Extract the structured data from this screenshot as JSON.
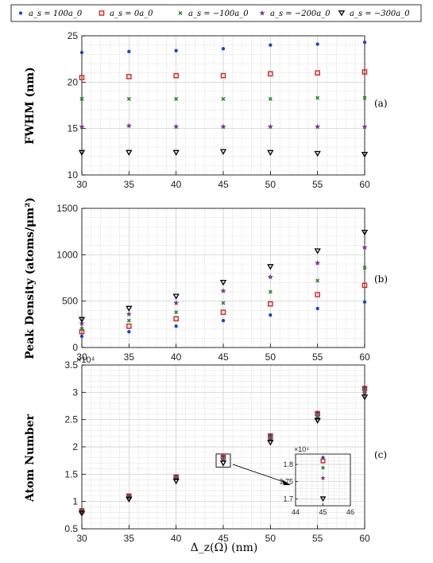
{
  "legend": {
    "entries": [
      {
        "label": "a_s = 100a_0",
        "marker": "dot",
        "color": "#1f3fd6"
      },
      {
        "label": "a_s = 0a_0",
        "marker": "square",
        "color": "#e0201b"
      },
      {
        "label": "a_s = −100a_0",
        "marker": "x",
        "color": "#1f8a2a"
      },
      {
        "label": "a_s = −200a_0",
        "marker": "star",
        "color": "#7a3a8e"
      },
      {
        "label": "a_s = −300a_0",
        "marker": "triangle",
        "color": "#000000"
      }
    ]
  },
  "panels_text": {
    "a": {
      "ylabel": "FWHM  (nm)",
      "tag": "(a)"
    },
    "b": {
      "ylabel": "Peak Density (atoms/μm²)",
      "tag": "(b)"
    },
    "c": {
      "ylabel": "Atom Number",
      "tag": "(c)",
      "exponent": "×10⁴",
      "inset_exponent": "×10⁴"
    }
  },
  "xlabel": "Δ_z(Ω)  (nm)",
  "chart_data": [
    {
      "type": "scatter",
      "panel": "a",
      "ylabel": "FWHM  (nm)",
      "xlim": [
        30,
        60
      ],
      "ylim": [
        10,
        25
      ],
      "xticks": [
        30,
        35,
        40,
        45,
        50,
        55,
        60
      ],
      "yticks": [
        10,
        15,
        20,
        25
      ],
      "grid": true,
      "x": [
        30,
        35,
        40,
        45,
        50,
        55,
        60
      ],
      "series": [
        {
          "name": "a_s = 100a_0",
          "values": [
            23.2,
            23.3,
            23.4,
            23.6,
            24.0,
            24.1,
            24.3
          ]
        },
        {
          "name": "a_s = 0a_0",
          "values": [
            20.5,
            20.6,
            20.7,
            20.7,
            20.9,
            21.0,
            21.1
          ]
        },
        {
          "name": "a_s = −100a_0",
          "values": [
            18.2,
            18.2,
            18.2,
            18.2,
            18.2,
            18.3,
            18.3
          ]
        },
        {
          "name": "a_s = −200a_0",
          "values": [
            15.2,
            15.3,
            15.2,
            15.2,
            15.2,
            15.2,
            15.2
          ]
        },
        {
          "name": "a_s = −300a_0",
          "values": [
            12.4,
            12.4,
            12.4,
            12.5,
            12.4,
            12.3,
            12.2
          ]
        }
      ]
    },
    {
      "type": "scatter",
      "panel": "b",
      "ylabel": "Peak Density (atoms/μm²)",
      "xlim": [
        30,
        60
      ],
      "ylim": [
        0,
        1500
      ],
      "xticks": [
        30,
        35,
        40,
        45,
        50,
        55,
        60
      ],
      "yticks": [
        0,
        500,
        1000,
        1500
      ],
      "grid": true,
      "x": [
        30,
        35,
        40,
        45,
        50,
        55,
        60
      ],
      "series": [
        {
          "name": "a_s = 100a_0",
          "values": [
            120,
            170,
            230,
            290,
            350,
            420,
            490
          ]
        },
        {
          "name": "a_s = 0a_0",
          "values": [
            170,
            230,
            310,
            380,
            470,
            570,
            670
          ]
        },
        {
          "name": "a_s = −100a_0",
          "values": [
            200,
            290,
            380,
            480,
            600,
            720,
            860
          ]
        },
        {
          "name": "a_s = −200a_0",
          "values": [
            260,
            360,
            480,
            610,
            760,
            910,
            1080
          ]
        },
        {
          "name": "a_s = −300a_0",
          "values": [
            300,
            420,
            550,
            700,
            870,
            1040,
            1240
          ]
        }
      ]
    },
    {
      "type": "scatter",
      "panel": "c",
      "ylabel": "Atom Number",
      "xlim": [
        30,
        60
      ],
      "ylim": [
        0.5,
        3.5
      ],
      "xticks": [
        30,
        35,
        40,
        45,
        50,
        55,
        60
      ],
      "yticks": [
        0.5,
        1,
        1.5,
        2,
        2.5,
        3,
        3.5
      ],
      "grid": true,
      "x": [
        30,
        35,
        40,
        45,
        50,
        55,
        60
      ],
      "series": [
        {
          "name": "a_s = 100a_0",
          "values": [
            0.84,
            1.11,
            1.46,
            1.82,
            2.22,
            2.63,
            3.09
          ]
        },
        {
          "name": "a_s = 0a_0",
          "values": [
            0.83,
            1.1,
            1.45,
            1.81,
            2.2,
            2.61,
            3.07
          ]
        },
        {
          "name": "a_s = −100a_0",
          "values": [
            0.82,
            1.09,
            1.44,
            1.79,
            2.17,
            2.57,
            3.03
          ]
        },
        {
          "name": "a_s = −200a_0",
          "values": [
            0.81,
            1.07,
            1.42,
            1.76,
            2.13,
            2.52,
            2.98
          ]
        },
        {
          "name": "a_s = −300a_0",
          "values": [
            0.78,
            1.04,
            1.37,
            1.7,
            2.08,
            2.48,
            2.91
          ]
        }
      ]
    },
    {
      "type": "scatter",
      "panel": "c-inset",
      "xlim": [
        44,
        46
      ],
      "ylim": [
        1.68,
        1.83
      ],
      "xticks": [
        44,
        45,
        46
      ],
      "yticks": [
        1.7,
        1.75,
        1.8
      ],
      "grid": true,
      "x": [
        45
      ],
      "series": [
        {
          "name": "a_s = 100a_0",
          "values": [
            1.82
          ]
        },
        {
          "name": "a_s = 0a_0",
          "values": [
            1.81
          ]
        },
        {
          "name": "a_s = −100a_0",
          "values": [
            1.79
          ]
        },
        {
          "name": "a_s = −200a_0",
          "values": [
            1.76
          ]
        },
        {
          "name": "a_s = −300a_0",
          "values": [
            1.7
          ]
        }
      ]
    }
  ]
}
